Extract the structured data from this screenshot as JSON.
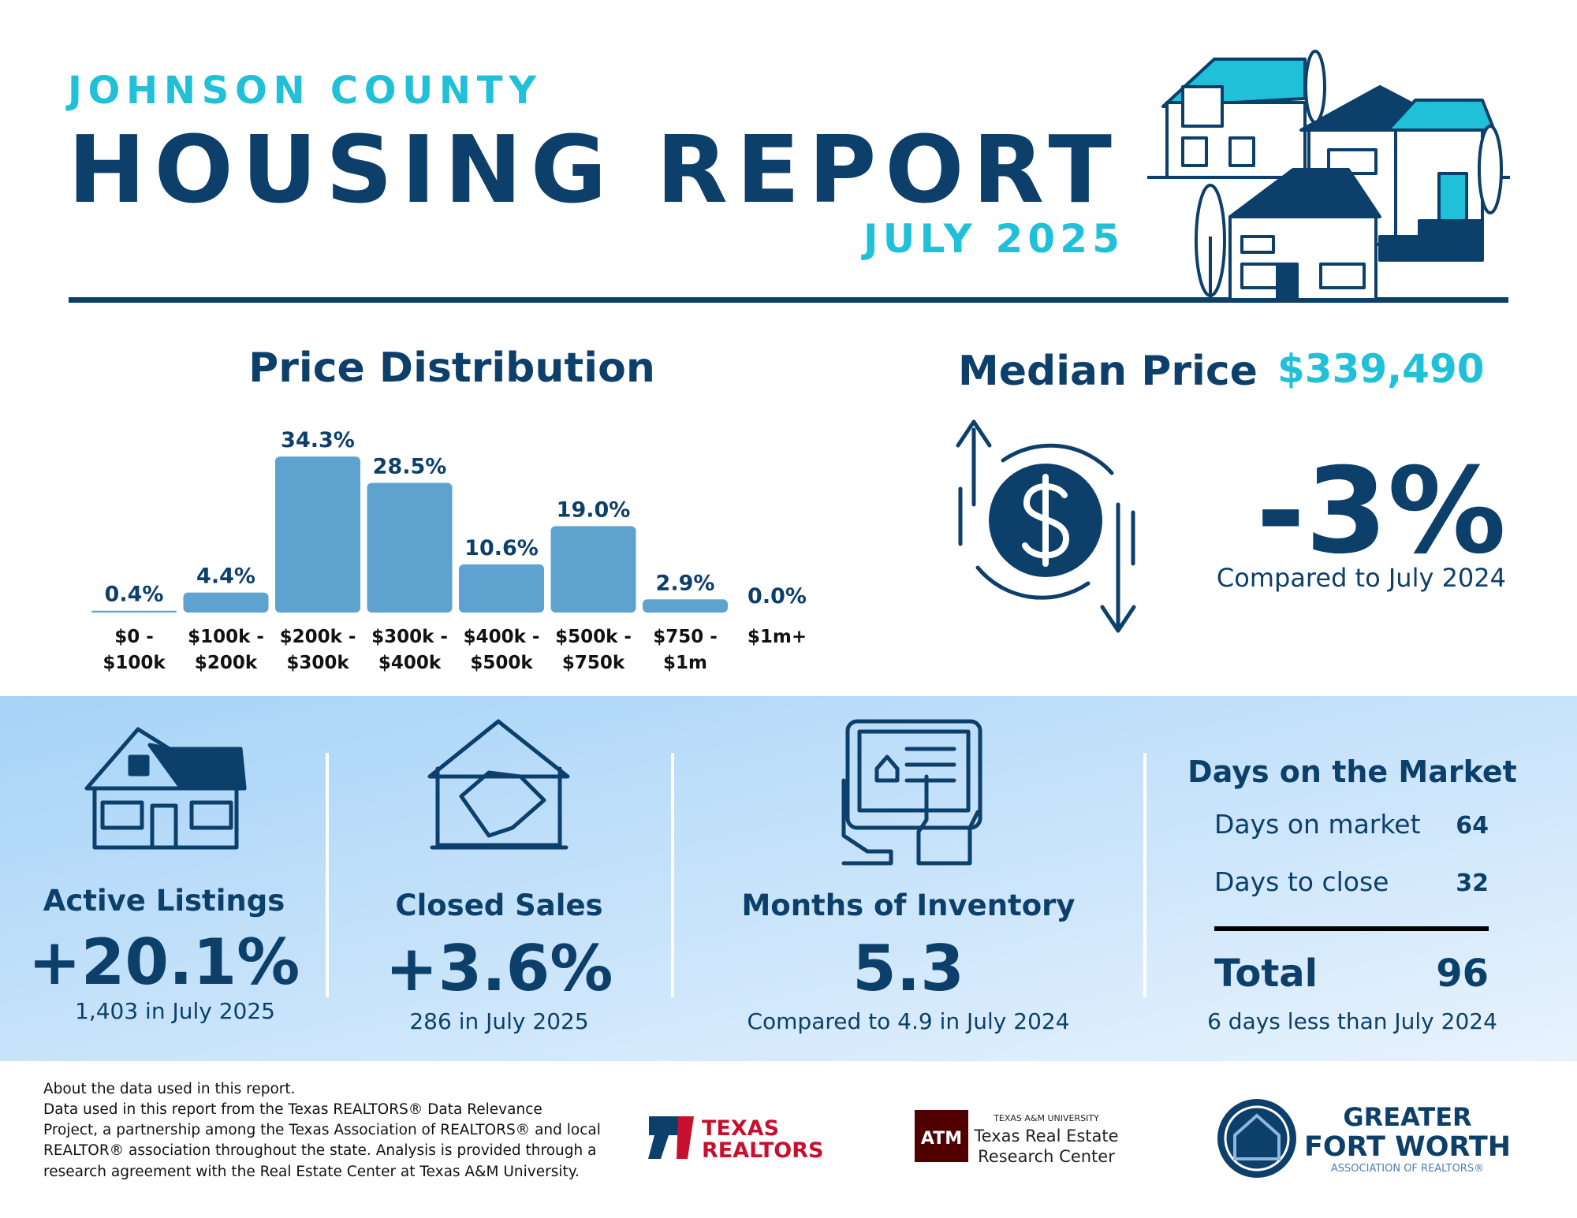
{
  "header": {
    "subtitle": "JOHNSON COUNTY",
    "title": "HOUSING REPORT",
    "date": "JULY 2025"
  },
  "price_distribution": {
    "type": "bar",
    "title": "Price Distribution",
    "categories": [
      [
        "$0 -",
        "$100k"
      ],
      [
        "$100k -",
        "$200k"
      ],
      [
        "$200k -",
        "$300k"
      ],
      [
        "$300k -",
        "$400k"
      ],
      [
        "$400k -",
        "$500k"
      ],
      [
        "$500k -",
        "$750k"
      ],
      [
        "$750 -",
        "$1m"
      ],
      [
        "$1m+"
      ]
    ],
    "values": [
      0.4,
      4.4,
      34.3,
      28.5,
      10.6,
      19.0,
      2.9,
      0.0
    ],
    "value_labels": [
      "0.4%",
      "4.4%",
      "34.3%",
      "28.5%",
      "10.6%",
      "19.0%",
      "2.9%",
      "0.0%"
    ],
    "color": "#5ea3d0"
  },
  "median_price": {
    "label": "Median Price",
    "value": "$339,490",
    "change": "-3%",
    "comparison": "Compared to July 2024"
  },
  "stats": [
    {
      "title": "Active Listings",
      "value": "+20.1%",
      "note": "1,403 in July 2025"
    },
    {
      "title": "Closed Sales",
      "value": "+3.6%",
      "note": "286 in July 2025"
    },
    {
      "title": "Months of Inventory",
      "value": "5.3",
      "note": "Compared to 4.9 in July 2024"
    }
  ],
  "days_on_market": {
    "title": "Days on the Market",
    "rows": [
      {
        "label": "Days on market",
        "value": 64
      },
      {
        "label": "Days to close",
        "value": 32
      }
    ],
    "total_label": "Total",
    "total": 96,
    "note": "6 days less than July 2024"
  },
  "footer": {
    "lines": [
      "About the data used in this report.",
      "Data used in this report from the Texas REALTORS® Data Relevance",
      "Project, a partnership among the Texas Association of REALTORS® and local",
      "REALTOR® association throughout the state. Analysis is provided through a",
      "research agreement with the Real Estate Center at Texas A&M University."
    ]
  },
  "logos": {
    "texas_realtors": [
      "TEXAS",
      "REALTORS"
    ],
    "tamu": {
      "mark": "ATM",
      "small": "TEXAS A&M UNIVERSITY",
      "lines": [
        "Texas Real Estate",
        "Research Center"
      ]
    },
    "gfw": {
      "lines": [
        "GREATER",
        "FORT WORTH"
      ],
      "sub": "ASSOCIATION OF REALTORS®"
    }
  }
}
